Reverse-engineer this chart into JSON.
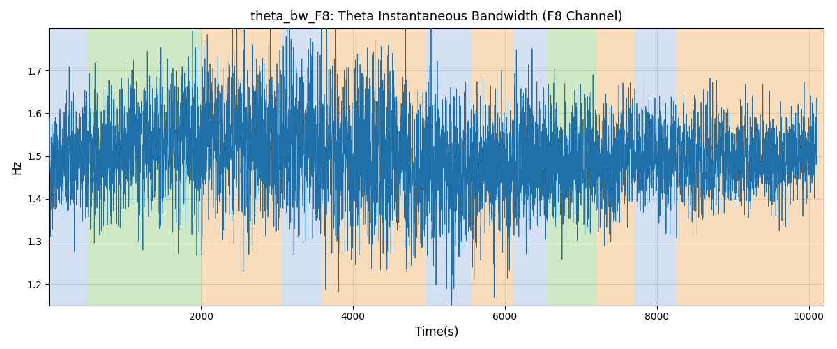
{
  "title": "theta_bw_F8: Theta Instantaneous Bandwidth (F8 Channel)",
  "xlabel": "Time(s)",
  "ylabel": "Hz",
  "xlim": [
    0,
    10200
  ],
  "ylim": [
    1.15,
    1.8
  ],
  "line_color": "#1f6fa8",
  "line_width": 0.6,
  "background_regions": [
    {
      "xmin": 0,
      "xmax": 500,
      "color": "#b0c8e8",
      "alpha": 0.55
    },
    {
      "xmin": 500,
      "xmax": 2000,
      "color": "#98d080",
      "alpha": 0.45
    },
    {
      "xmin": 2000,
      "xmax": 3050,
      "color": "#f5c080",
      "alpha": 0.55
    },
    {
      "xmin": 3050,
      "xmax": 3600,
      "color": "#b0c8e8",
      "alpha": 0.55
    },
    {
      "xmin": 3600,
      "xmax": 4950,
      "color": "#f5c080",
      "alpha": 0.55
    },
    {
      "xmin": 4950,
      "xmax": 5550,
      "color": "#b0c8e8",
      "alpha": 0.55
    },
    {
      "xmin": 5550,
      "xmax": 6100,
      "color": "#f5c080",
      "alpha": 0.55
    },
    {
      "xmin": 6100,
      "xmax": 6550,
      "color": "#b0c8e8",
      "alpha": 0.55
    },
    {
      "xmin": 6550,
      "xmax": 7200,
      "color": "#98d080",
      "alpha": 0.45
    },
    {
      "xmin": 7200,
      "xmax": 7700,
      "color": "#f5c080",
      "alpha": 0.55
    },
    {
      "xmin": 7700,
      "xmax": 8250,
      "color": "#b0c8e8",
      "alpha": 0.55
    },
    {
      "xmin": 8250,
      "xmax": 10200,
      "color": "#f5c080",
      "alpha": 0.55
    }
  ],
  "seed": 42,
  "n_points": 8000,
  "yticks": [
    1.2,
    1.3,
    1.4,
    1.5,
    1.6,
    1.7
  ],
  "xticks": [
    2000,
    4000,
    6000,
    8000,
    10000
  ],
  "figsize": [
    12.0,
    5.0
  ],
  "dpi": 100
}
